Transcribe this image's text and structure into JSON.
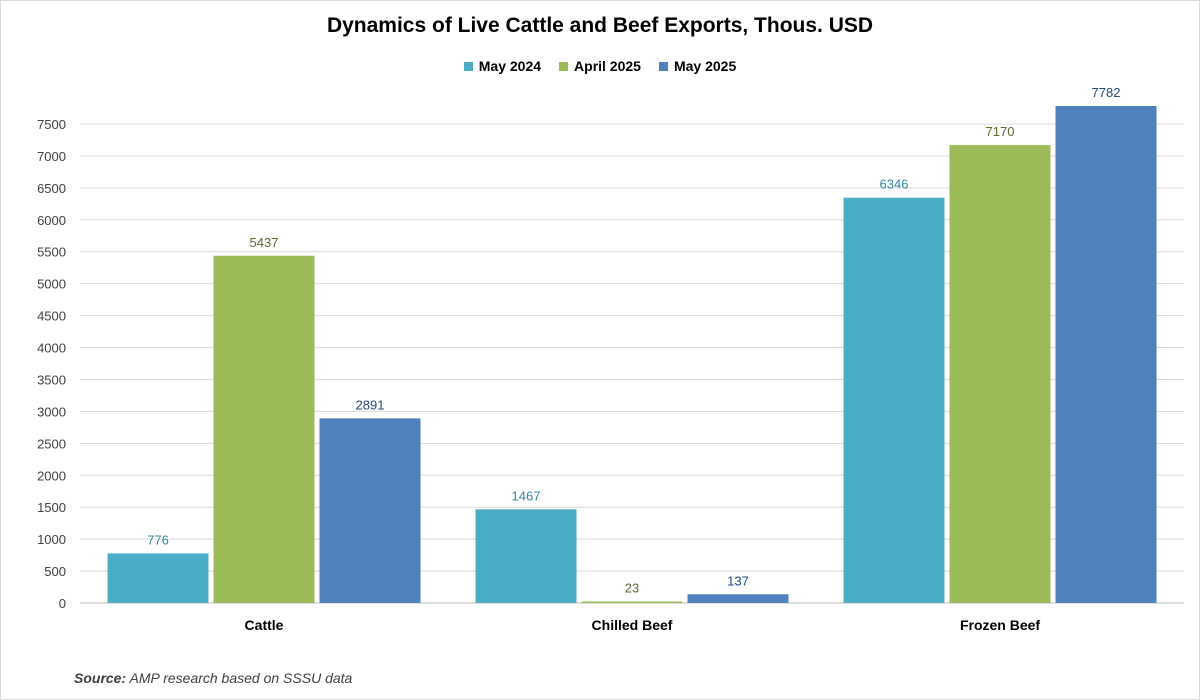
{
  "chart_data": {
    "type": "bar",
    "title": "Dynamics of Live Cattle and Beef Exports, Thous. USD",
    "categories": [
      "Cattle",
      "Chilled Beef",
      "Frozen Beef"
    ],
    "series": [
      {
        "name": "May 2024",
        "values": [
          776,
          1467,
          6346
        ],
        "color": "#4bacc6",
        "label_color": "#31859c"
      },
      {
        "name": "April 2025",
        "values": [
          5437,
          23,
          7170
        ],
        "color": "#9bbb59",
        "label_color": "#5a6b2c"
      },
      {
        "name": "May 2025",
        "values": [
          2891,
          137,
          7782
        ],
        "color": "#4f81bd",
        "label_color": "#1f497d"
      }
    ],
    "ylim": [
      0,
      7782
    ],
    "yticks": [
      0,
      500,
      1000,
      1500,
      2000,
      2500,
      3000,
      3500,
      4000,
      4500,
      5000,
      5500,
      6000,
      6500,
      7000,
      7500
    ],
    "grid": true,
    "legend_position": "top"
  },
  "source": {
    "label": "Source:",
    "text": " AMP research based on SSSU data"
  }
}
